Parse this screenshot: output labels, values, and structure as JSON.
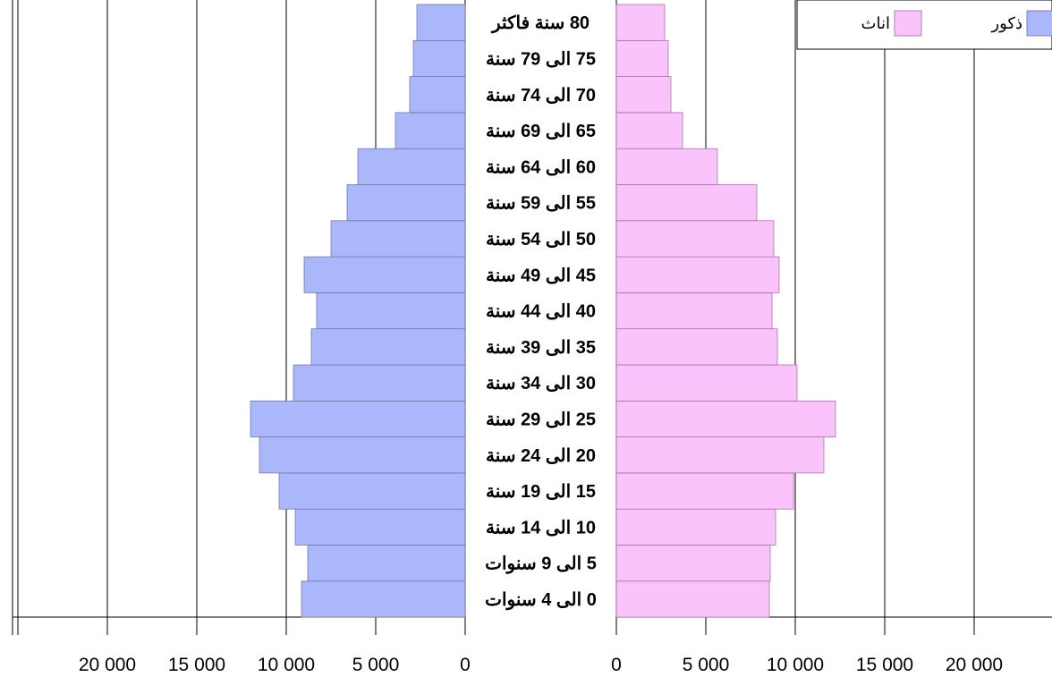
{
  "chart_data": {
    "type": "bar",
    "subtype": "population-pyramid",
    "categories": [
      "0 الى 4 سنوات",
      "5 الى 9 سنوات",
      "10 الى 14 سنة",
      "15 الى 19 سنة",
      "20 الى 24 سنة",
      "25 الى 29 سنة",
      "30 الى 34 سنة",
      "35 الى 39 سنة",
      "40 الى 44 سنة",
      "45 الى 49 سنة",
      "50 الى 54 سنة",
      "55 الى 59 سنة",
      "60 الى 64 سنة",
      "65 الى 69 سنة",
      "70 الى 74 سنة",
      "75 الى 79 سنة",
      "80 سنة فاكثر"
    ],
    "series": [
      {
        "name": "ذكور",
        "color": "#aab7fb",
        "values": [
          9150,
          8800,
          9500,
          10400,
          11500,
          12000,
          9600,
          8600,
          8300,
          9000,
          7500,
          6600,
          6000,
          3900,
          3100,
          2900,
          2700
        ]
      },
      {
        "name": "اناث",
        "color": "#fbc3fb",
        "values": [
          8550,
          8600,
          8900,
          9900,
          11600,
          12250,
          10100,
          9000,
          8700,
          9100,
          8800,
          7850,
          5650,
          3700,
          3050,
          2900,
          2700
        ]
      }
    ],
    "xticks_left": [
      "20 000",
      "15 000",
      "10 000",
      "5 000",
      "0"
    ],
    "xticks_right": [
      "0",
      "5 000",
      "10 000",
      "15 000",
      "20 000"
    ],
    "xlim": [
      0,
      25000
    ],
    "grid": true,
    "legend_position": "top-right",
    "title": "",
    "xlabel": "",
    "ylabel": ""
  },
  "legend": {
    "male_label": "ذكور",
    "female_label": "اناث"
  }
}
